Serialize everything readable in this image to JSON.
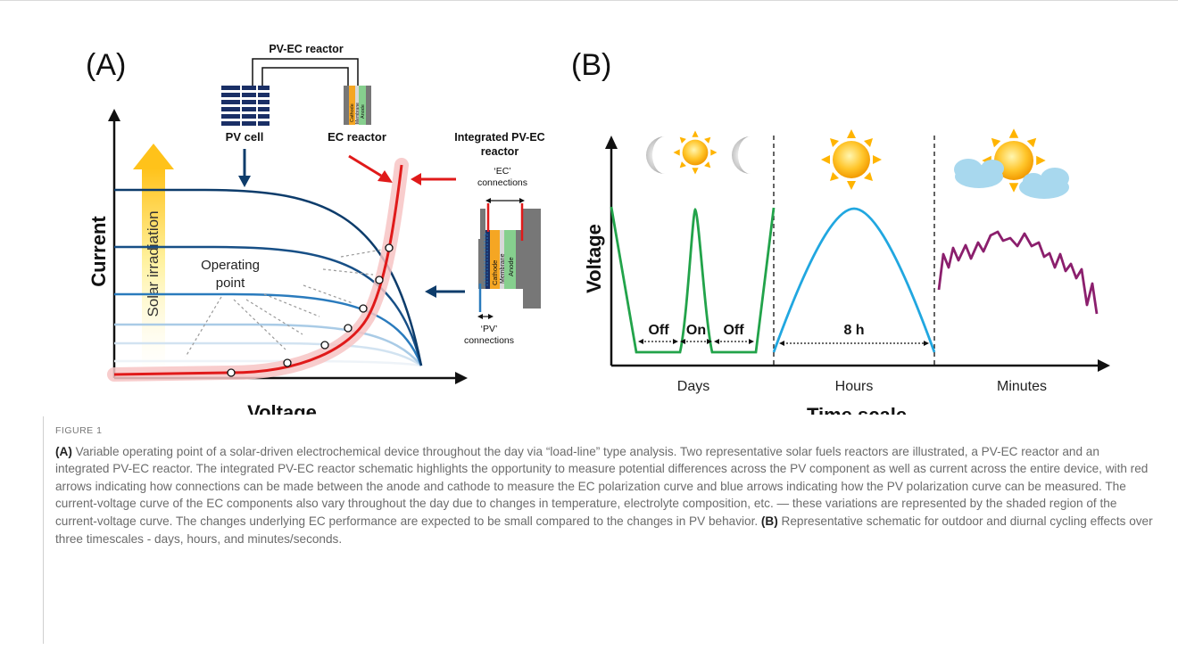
{
  "panelA": {
    "label": "(A)",
    "reactor_title": "PV-EC reactor",
    "pv_cell_label": "PV cell",
    "ec_reactor_label": "EC reactor",
    "layer_cathode": "Cathode",
    "layer_membrane": "Membrane",
    "layer_anode": "Anode",
    "integrated_title_1": "Integrated PV-EC",
    "integrated_title_2": "reactor",
    "ec_connections_1": "‘EC’",
    "ec_connections_2": "connections",
    "pv_connections_1": "‘PV’",
    "pv_connections_2": "connections",
    "ylabel": "Current",
    "xlabel": "Voltage",
    "irradiation_label": "Solar irradiation",
    "operating_point_1": "Operating",
    "operating_point_2": "point"
  },
  "panelB": {
    "label": "(B)",
    "ylabel": "Voltage",
    "xlabel": "Time scale",
    "section_days": "Days",
    "section_hours": "Hours",
    "section_minutes": "Minutes",
    "off_1": "Off",
    "on": "On",
    "off_2": "Off",
    "duration": "8 h"
  },
  "colors": {
    "pv_dark": "#0d3c6b",
    "pv_mid": "#2a7bbd",
    "pv_light": "#a9cbe6",
    "ec_curve": "#e01a1a",
    "days_curve": "#22a34a",
    "hours_curve": "#21a7e0",
    "minutes_curve": "#8b1f6d",
    "cathode": "#f5a623",
    "membrane": "#d8d8d8",
    "anode": "#86cf8e"
  },
  "caption": {
    "figure_label": "FIGURE 1",
    "a_label": "(A)",
    "a_text": " Variable operating point of a solar-driven electrochemical device throughout the day via “load-line” type analysis. Two representative solar fuels reactors are illustrated, a PV-EC reactor and an integrated PV-EC reactor. The integrated PV-EC reactor schematic highlights the opportunity to measure potential differences across the PV component as well as current across the entire device, with red arrows indicating how connections can be made between the anode and cathode to measure the EC polarization curve and blue arrows indicating how the PV polarization curve can be measured. The current-voltage curve of the EC components also vary throughout the day due to changes in temperature, electrolyte composition, etc. — these variations are represented by the shaded region of the current-voltage curve. The changes underlying EC performance are expected to be small compared to the changes in PV behavior.",
    "b_label": "(B)",
    "b_text": " Representative schematic for outdoor and diurnal cycling effects over three timescales - days, hours, and minutes/seconds."
  }
}
